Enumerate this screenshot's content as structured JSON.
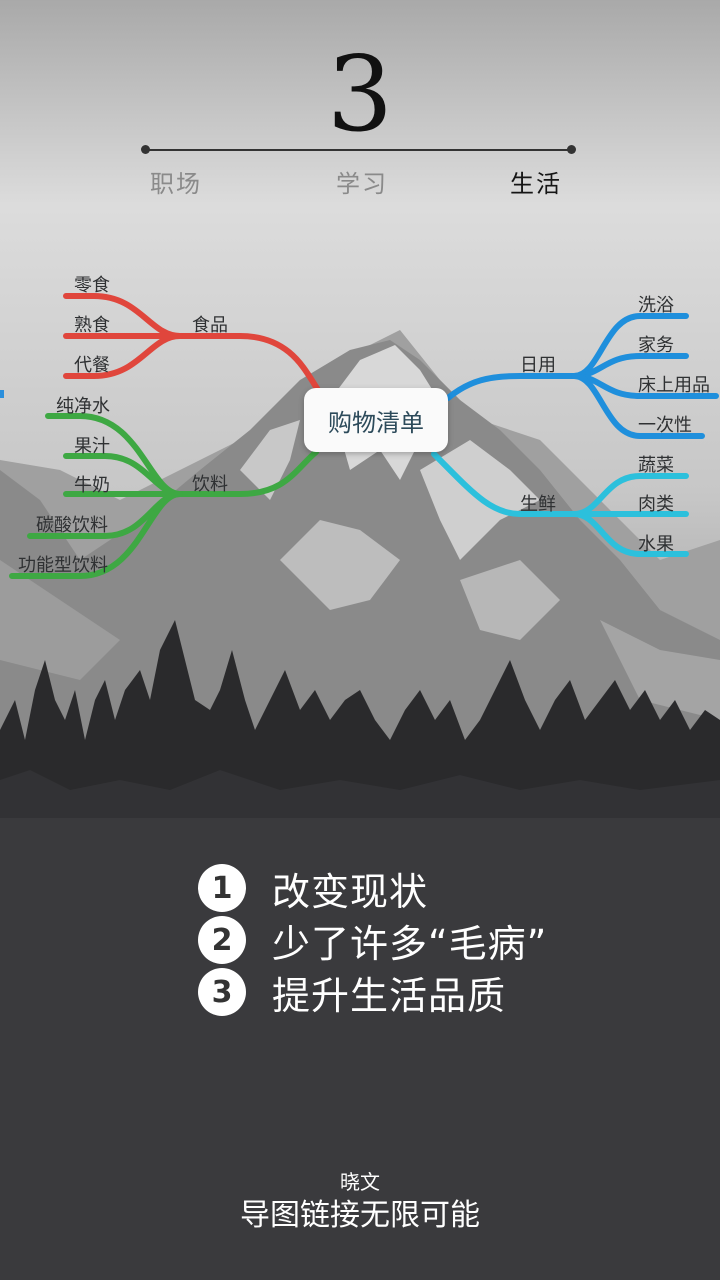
{
  "step": {
    "number": "3"
  },
  "tabs": [
    {
      "label": "职场",
      "active": false
    },
    {
      "label": "学习",
      "active": false
    },
    {
      "label": "生活",
      "active": true
    }
  ],
  "mindmap": {
    "center": "购物清单",
    "left": [
      {
        "label": "食品",
        "color": "#e0463c",
        "children": [
          "零食",
          "熟食",
          "代餐"
        ]
      },
      {
        "label": "饮料",
        "color": "#3ea843",
        "children": [
          "纯净水",
          "果汁",
          "牛奶",
          "碳酸饮料",
          "功能型饮料"
        ]
      }
    ],
    "right": [
      {
        "label": "日用",
        "color": "#1f8fdc",
        "children": [
          "洗浴",
          "家务",
          "床上用品",
          "一次性"
        ]
      },
      {
        "label": "生鲜",
        "color": "#2cc0dc",
        "children": [
          "蔬菜",
          "肉类",
          "水果"
        ]
      }
    ]
  },
  "points": [
    {
      "num": "1",
      "text": "改变现状"
    },
    {
      "num": "2",
      "text": "少了许多“毛病”"
    },
    {
      "num": "3",
      "text": "提升生活品质"
    }
  ],
  "footer": {
    "author": "晓文",
    "tagline": "导图链接无限可能"
  }
}
